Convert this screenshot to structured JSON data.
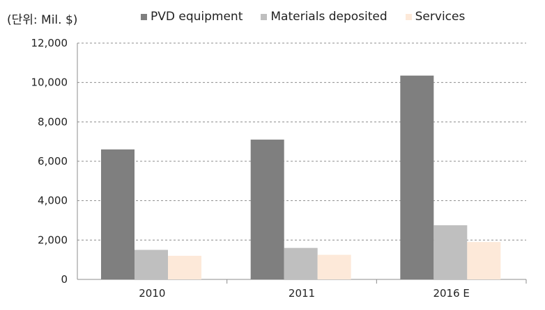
{
  "unit_label": "(단위: Mil. $)",
  "colors": {
    "PVD equipment": "#7f7f7f",
    "Materials deposited": "#bfbfbf",
    "Services": "#fde9d9",
    "grid": "#8c8c8c",
    "axis": "#8c8c8c"
  },
  "chart_data": {
    "type": "bar",
    "categories": [
      "2010",
      "2011",
      "2016 E"
    ],
    "series": [
      {
        "name": "PVD equipment",
        "values": [
          6600,
          7100,
          10350
        ]
      },
      {
        "name": "Materials deposited",
        "values": [
          1500,
          1600,
          2750
        ]
      },
      {
        "name": "Services",
        "values": [
          1200,
          1250,
          1900
        ]
      }
    ],
    "ylim": [
      0,
      12000
    ],
    "yticks": [
      0,
      2000,
      4000,
      6000,
      8000,
      10000,
      12000
    ],
    "ytick_labels": [
      "0",
      "2,000",
      "4,000",
      "6,000",
      "8,000",
      "10,000",
      "12,000"
    ],
    "grid": true,
    "legend_position": "top",
    "xlabel": "",
    "ylabel": ""
  }
}
